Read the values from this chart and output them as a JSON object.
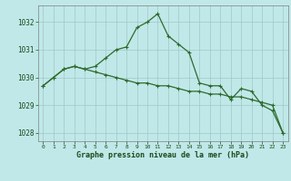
{
  "title": "Graphe pression niveau de la mer (hPa)",
  "x": [
    0,
    1,
    2,
    3,
    4,
    5,
    6,
    7,
    8,
    9,
    10,
    11,
    12,
    13,
    14,
    15,
    16,
    17,
    18,
    19,
    20,
    21,
    22,
    23
  ],
  "line1": [
    1029.7,
    1030.0,
    1030.3,
    1030.4,
    1030.3,
    1030.4,
    1030.7,
    1031.0,
    1031.1,
    1031.8,
    1032.0,
    1032.3,
    1031.5,
    1031.2,
    1030.9,
    1029.8,
    1029.7,
    1029.7,
    1029.2,
    1029.6,
    1029.5,
    1029.0,
    1028.8,
    1028.0
  ],
  "line2": [
    1029.7,
    1030.0,
    1030.3,
    1030.4,
    1030.3,
    1030.2,
    1030.1,
    1030.0,
    1029.9,
    1029.8,
    1029.8,
    1029.7,
    1029.7,
    1029.6,
    1029.5,
    1029.5,
    1029.4,
    1029.4,
    1029.3,
    1029.3,
    1029.2,
    1029.1,
    1029.0,
    1028.0
  ],
  "line_color": "#2d6a2d",
  "bg_color": "#c0e8e8",
  "grid_color": "#a0c8c8",
  "text_color": "#1a4a1a",
  "ylim": [
    1027.7,
    1032.6
  ],
  "yticks": [
    1028,
    1029,
    1030,
    1031,
    1032
  ],
  "xticks": [
    0,
    1,
    2,
    3,
    4,
    5,
    6,
    7,
    8,
    9,
    10,
    11,
    12,
    13,
    14,
    15,
    16,
    17,
    18,
    19,
    20,
    21,
    22,
    23
  ]
}
